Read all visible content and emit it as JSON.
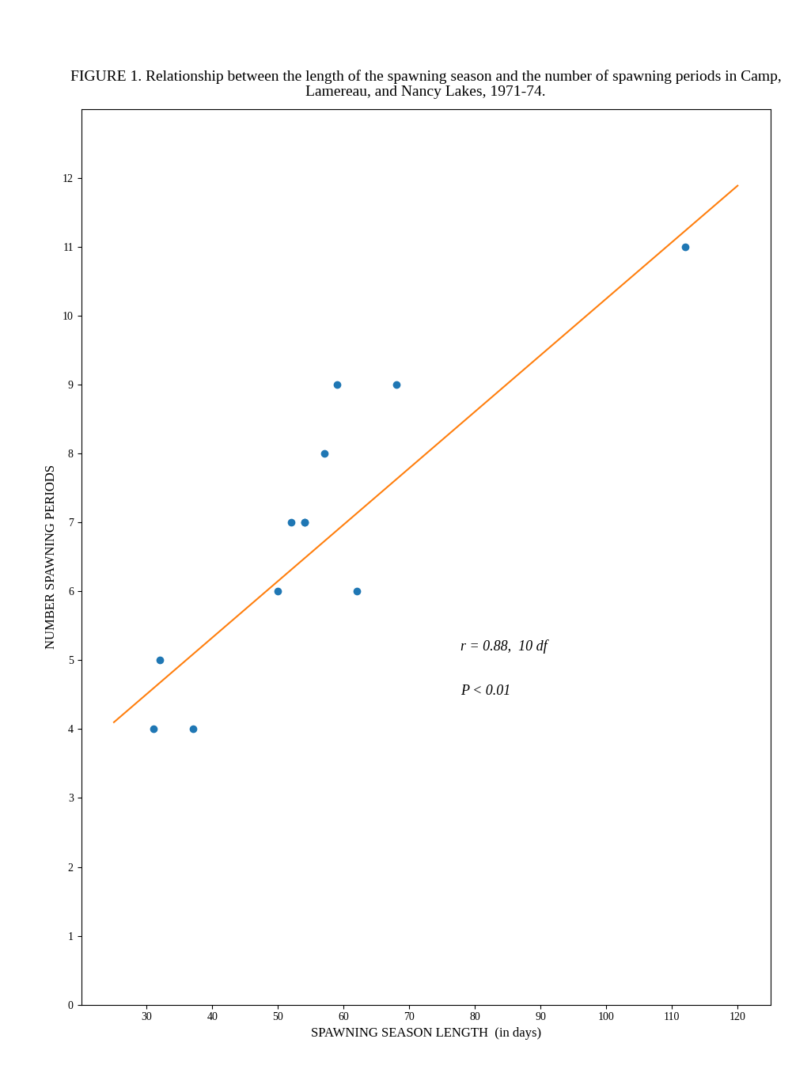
{
  "chart_data": {
    "type": "scatter",
    "title": "FIGURE 1. Relationship between the length of the spawning season and the number of spawning periods in Camp, Lamereau, and Nancy Lakes, 1971-74.",
    "x_label": "SPAWNING SEASON LENGTH  (in days)",
    "y_label": "NUMBER SPAWNING PERIODS",
    "series": [
      {
        "type": "scatter",
        "x": [
          31,
          37,
          32,
          50,
          52,
          54,
          54,
          57,
          59,
          62,
          68,
          112
        ],
        "values": [
          4,
          4,
          5,
          6,
          7,
          7,
          7,
          8,
          9,
          6,
          9,
          11
        ]
      },
      {
        "type": "line",
        "x": [
          25,
          120
        ],
        "values": [
          4.1,
          11.89
        ]
      }
    ],
    "annotations": [
      "r = 0.88,  10 df",
      "P < 0.01"
    ],
    "xlim": [
      20,
      125
    ],
    "ylim": [
      0,
      13
    ],
    "xticks": [
      30,
      40,
      50,
      60,
      70,
      80,
      90,
      100,
      110,
      120
    ],
    "yticks": [
      0,
      1,
      2,
      3,
      4,
      5,
      6,
      7,
      8,
      9,
      10,
      11,
      12
    ],
    "grid": false
  }
}
